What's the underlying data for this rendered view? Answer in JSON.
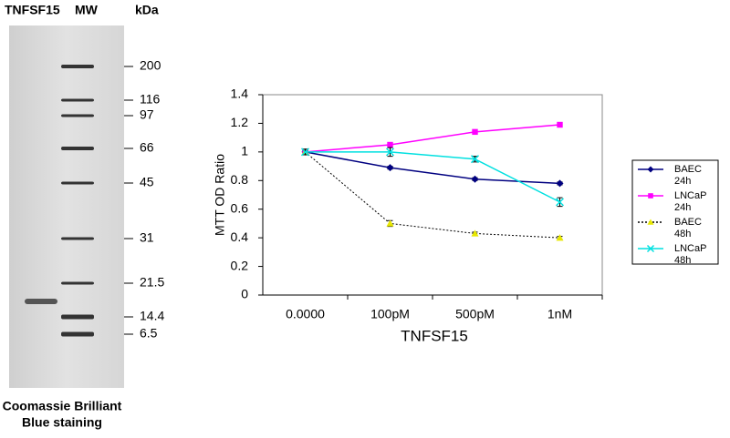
{
  "gel": {
    "lane_labels": [
      "TNFSF15",
      "MW"
    ],
    "unit": "kDa",
    "markers": [
      200,
      116,
      97,
      66,
      45,
      31,
      21.5,
      14.4,
      6.5
    ],
    "caption": [
      "Coomassie Brilliant",
      "Blue staining"
    ]
  },
  "chart_data": {
    "type": "line",
    "xlabel": "TNFSF15",
    "ylabel": "MTT OD Ratio",
    "categories": [
      "0.0000",
      "100pM",
      "500pM",
      "1nM"
    ],
    "ylim": [
      0,
      1.4
    ],
    "yticks": [
      0,
      0.2,
      0.4,
      0.6,
      0.8,
      1,
      1.2,
      1.4
    ],
    "series": [
      {
        "name": "BAEC 24h",
        "color": "#000080",
        "marker": "diamond",
        "line_style": "solid",
        "values": [
          1,
          0.89,
          0.81,
          0.78
        ],
        "errors": [
          0.01,
          0.01,
          0.01,
          0.01
        ]
      },
      {
        "name": "LNCaP 24h",
        "color": "#ff00ff",
        "marker": "square",
        "line_style": "solid",
        "values": [
          1,
          1.05,
          1.14,
          1.19
        ],
        "errors": [
          0.01,
          0.01,
          0.01,
          0.01
        ]
      },
      {
        "name": "BAEC 48h",
        "color": "#e8e800",
        "marker": "triangle",
        "line_style": "dotted",
        "values": [
          1,
          0.5,
          0.43,
          0.4
        ],
        "errors": [
          0.01,
          0.02,
          0.01,
          0.01
        ]
      },
      {
        "name": "LNCaP 48h",
        "color": "#00e0e0",
        "marker": "x",
        "line_style": "solid",
        "values": [
          1,
          1.0,
          0.95,
          0.65
        ],
        "errors": [
          0.02,
          0.03,
          0.02,
          0.03
        ]
      }
    ]
  }
}
